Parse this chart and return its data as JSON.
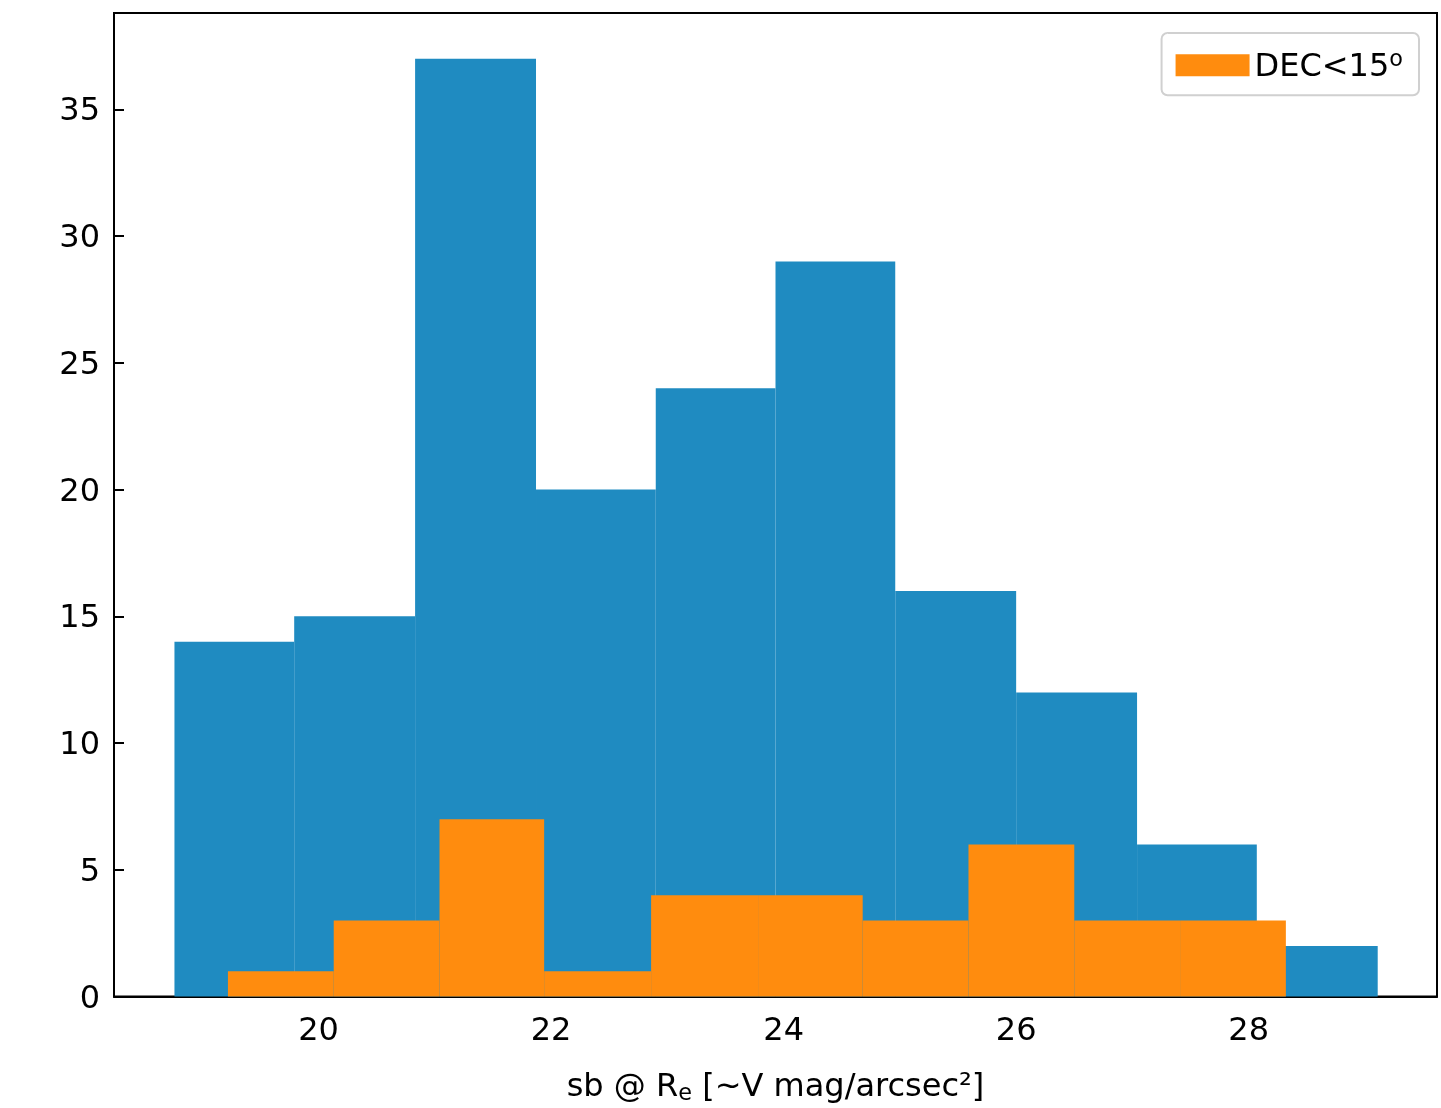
{
  "chart_data": {
    "type": "histogram",
    "xlabel": "sb @ R$_{e}$ [~V mag/arcsec²]",
    "xlim": [
      18.24,
      29.62
    ],
    "xticks": [
      20,
      22,
      24,
      26,
      28
    ],
    "ylim": [
      0,
      38.8
    ],
    "yticks": [
      0,
      5,
      10,
      15,
      20,
      25,
      30,
      35
    ],
    "grid": false,
    "legend": "top right",
    "bins": [
      18.76,
      19.79,
      20.83,
      21.87,
      22.9,
      23.93,
      24.96,
      26.0,
      27.04,
      28.07,
      29.11
    ],
    "series": [
      {
        "color": "#1f8bc1",
        "values": [
          14,
          15,
          37,
          20,
          24,
          29,
          16,
          12,
          6,
          2
        ]
      },
      {
        "name": "DEC<15$^{o}$",
        "color": "#ff8c0e",
        "bins": [
          19.22,
          20.13,
          21.04,
          21.94,
          22.86,
          23.78,
          24.68,
          25.59,
          26.5,
          27.41,
          28.32
        ],
        "values": [
          1,
          3,
          7,
          1,
          4,
          4,
          3,
          6,
          3,
          3
        ]
      }
    ]
  }
}
